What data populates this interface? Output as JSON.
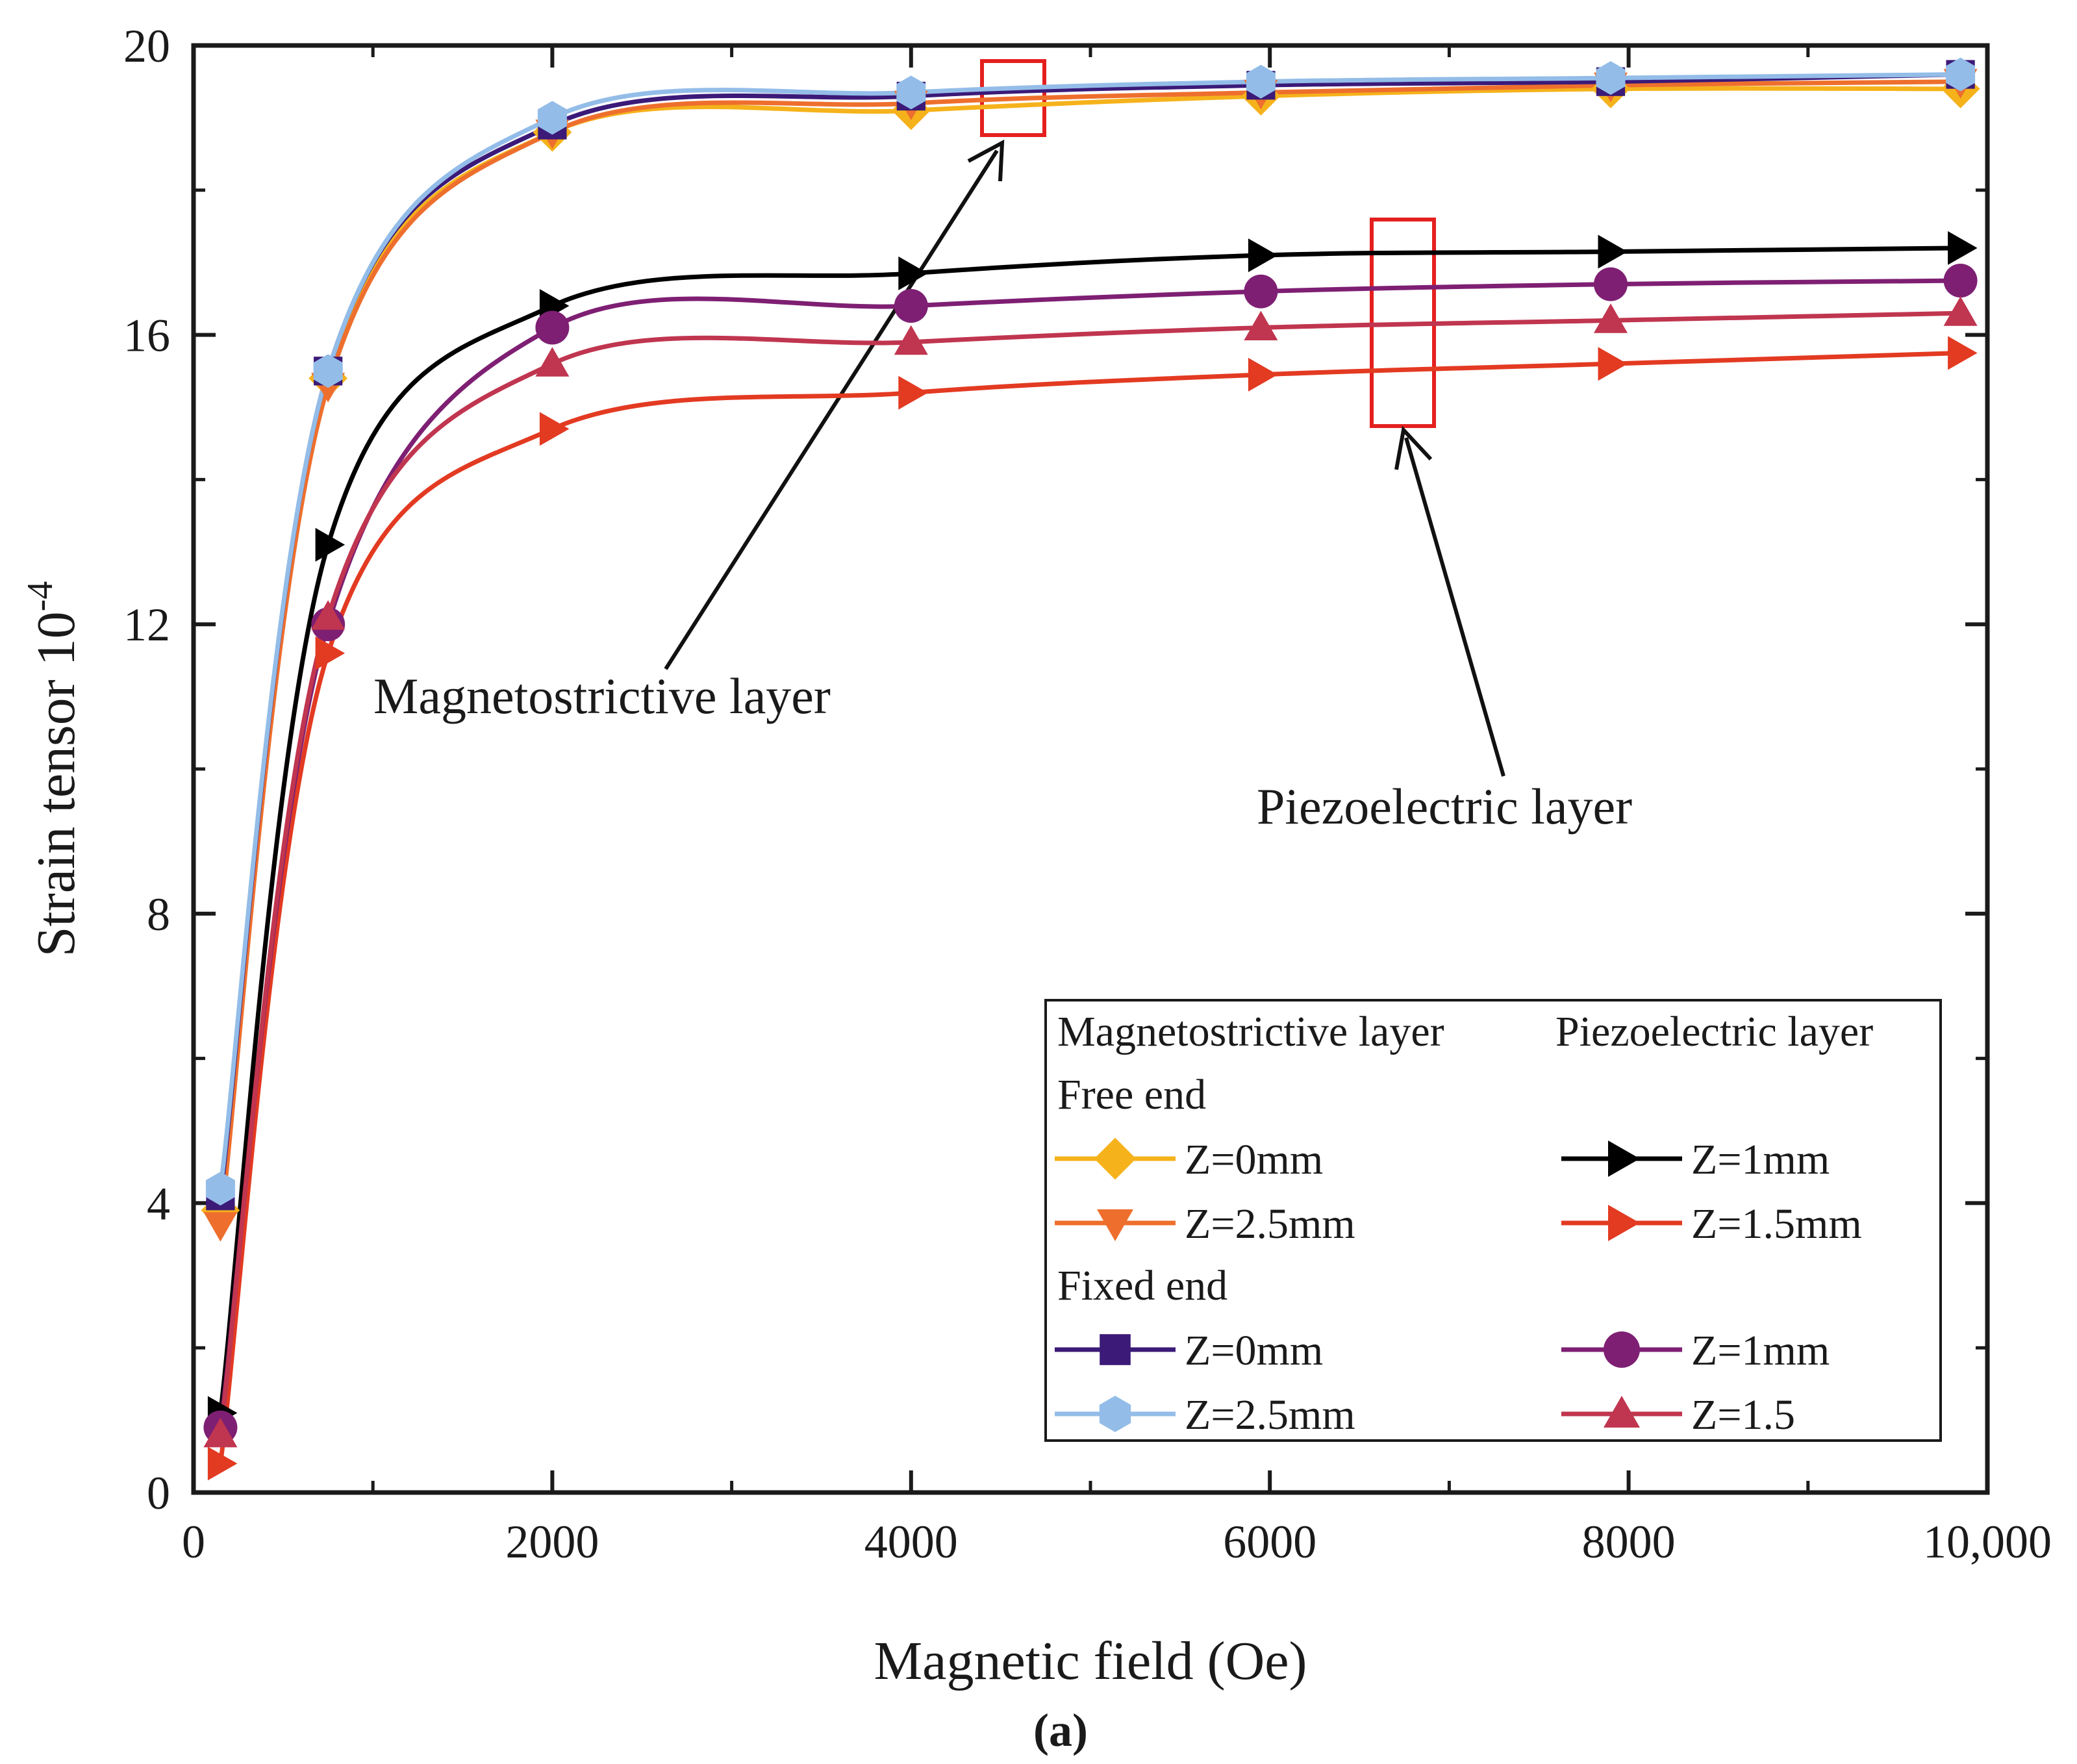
{
  "chart_data": {
    "type": "line",
    "xlabel": "Magnetic field (Oe)",
    "ylabel_base": "Strain tensor 10",
    "ylabel_exponent": "-4",
    "xlim": [
      0,
      10000
    ],
    "ylim": [
      0,
      20
    ],
    "xticks": [
      0,
      2000,
      4000,
      6000,
      8000,
      10000
    ],
    "xtick_labels": [
      "0",
      "2000",
      "4000",
      "6000",
      "8000",
      "10,000"
    ],
    "yticks": [
      0,
      4,
      8,
      12,
      16,
      20
    ],
    "ytick_labels": [
      "0",
      "4",
      "8",
      "12",
      "16",
      "20"
    ],
    "caption": "(a)",
    "annotations": [
      {
        "name": "magnetostrictive-annotation",
        "text": "Magnetostrictive  layer"
      },
      {
        "name": "piezoelectric-annotation",
        "text": "Piezoelectric  layer"
      }
    ],
    "legend": {
      "column_headers": [
        "Magnetostrictive layer",
        "Piezoelectric layer"
      ],
      "group_labels": [
        "Free end",
        "Fixed end"
      ],
      "placement": "bottom-right"
    },
    "series": [
      {
        "id": "mag-free-0",
        "legend_label": "Z=0mm",
        "group": "Free end",
        "column": 0,
        "color": "#f5b21b",
        "marker": "diamond",
        "x": [
          150,
          750,
          2000,
          4000,
          5950,
          7900,
          9850
        ],
        "y": [
          3.9,
          15.4,
          18.8,
          19.1,
          19.3,
          19.4,
          19.4
        ]
      },
      {
        "id": "mag-free-25",
        "legend_label": "Z=2.5mm",
        "group": "Free end",
        "column": 0,
        "color": "#ee6f2d",
        "marker": "triangle-down",
        "x": [
          150,
          750,
          2000,
          4000,
          5950,
          7900,
          9850
        ],
        "y": [
          3.7,
          15.3,
          18.8,
          19.2,
          19.35,
          19.45,
          19.5
        ]
      },
      {
        "id": "mag-fixed-0",
        "legend_label": "Z=0mm",
        "group": "Fixed end",
        "column": 0,
        "color": "#3b1a78",
        "marker": "square",
        "x": [
          150,
          750,
          2000,
          4000,
          5950,
          7900,
          9850
        ],
        "y": [
          4.1,
          15.5,
          18.9,
          19.3,
          19.45,
          19.5,
          19.6
        ]
      },
      {
        "id": "mag-fixed-25",
        "legend_label": "Z=2.5mm",
        "group": "Fixed end",
        "column": 0,
        "color": "#93bde8",
        "marker": "hexagon",
        "x": [
          150,
          750,
          2000,
          4000,
          5950,
          7900,
          9850
        ],
        "y": [
          4.2,
          15.5,
          19.0,
          19.35,
          19.5,
          19.55,
          19.6
        ]
      },
      {
        "id": "pz-free-1",
        "legend_label": "Z=1mm",
        "group": "Free end",
        "column": 1,
        "color": "#000000",
        "marker": "triangle-right",
        "x": [
          150,
          750,
          2000,
          4000,
          5950,
          7900,
          9850
        ],
        "y": [
          1.1,
          13.1,
          16.4,
          16.85,
          17.1,
          17.15,
          17.2
        ]
      },
      {
        "id": "pz-free-15",
        "legend_label": "Z=1.5mm",
        "group": "Free end",
        "column": 1,
        "color": "#e33a22",
        "marker": "triangle-right",
        "x": [
          150,
          750,
          2000,
          4000,
          5950,
          7900,
          9850
        ],
        "y": [
          0.4,
          11.6,
          14.7,
          15.2,
          15.45,
          15.6,
          15.75
        ]
      },
      {
        "id": "pz-fixed-1",
        "legend_label": "Z=1mm",
        "group": "Fixed end",
        "column": 1,
        "color": "#7e1f73",
        "marker": "circle",
        "x": [
          150,
          750,
          2000,
          4000,
          5950,
          7900,
          9850
        ],
        "y": [
          0.9,
          12.0,
          16.1,
          16.4,
          16.6,
          16.7,
          16.75
        ]
      },
      {
        "id": "pz-fixed-15",
        "legend_label": "Z=1.5",
        "group": "Fixed end",
        "column": 1,
        "color": "#c0354f",
        "marker": "triangle-up",
        "x": [
          150,
          750,
          2000,
          4000,
          5950,
          7900,
          9850
        ],
        "y": [
          0.8,
          12.1,
          15.6,
          15.9,
          16.1,
          16.2,
          16.3
        ]
      }
    ]
  }
}
